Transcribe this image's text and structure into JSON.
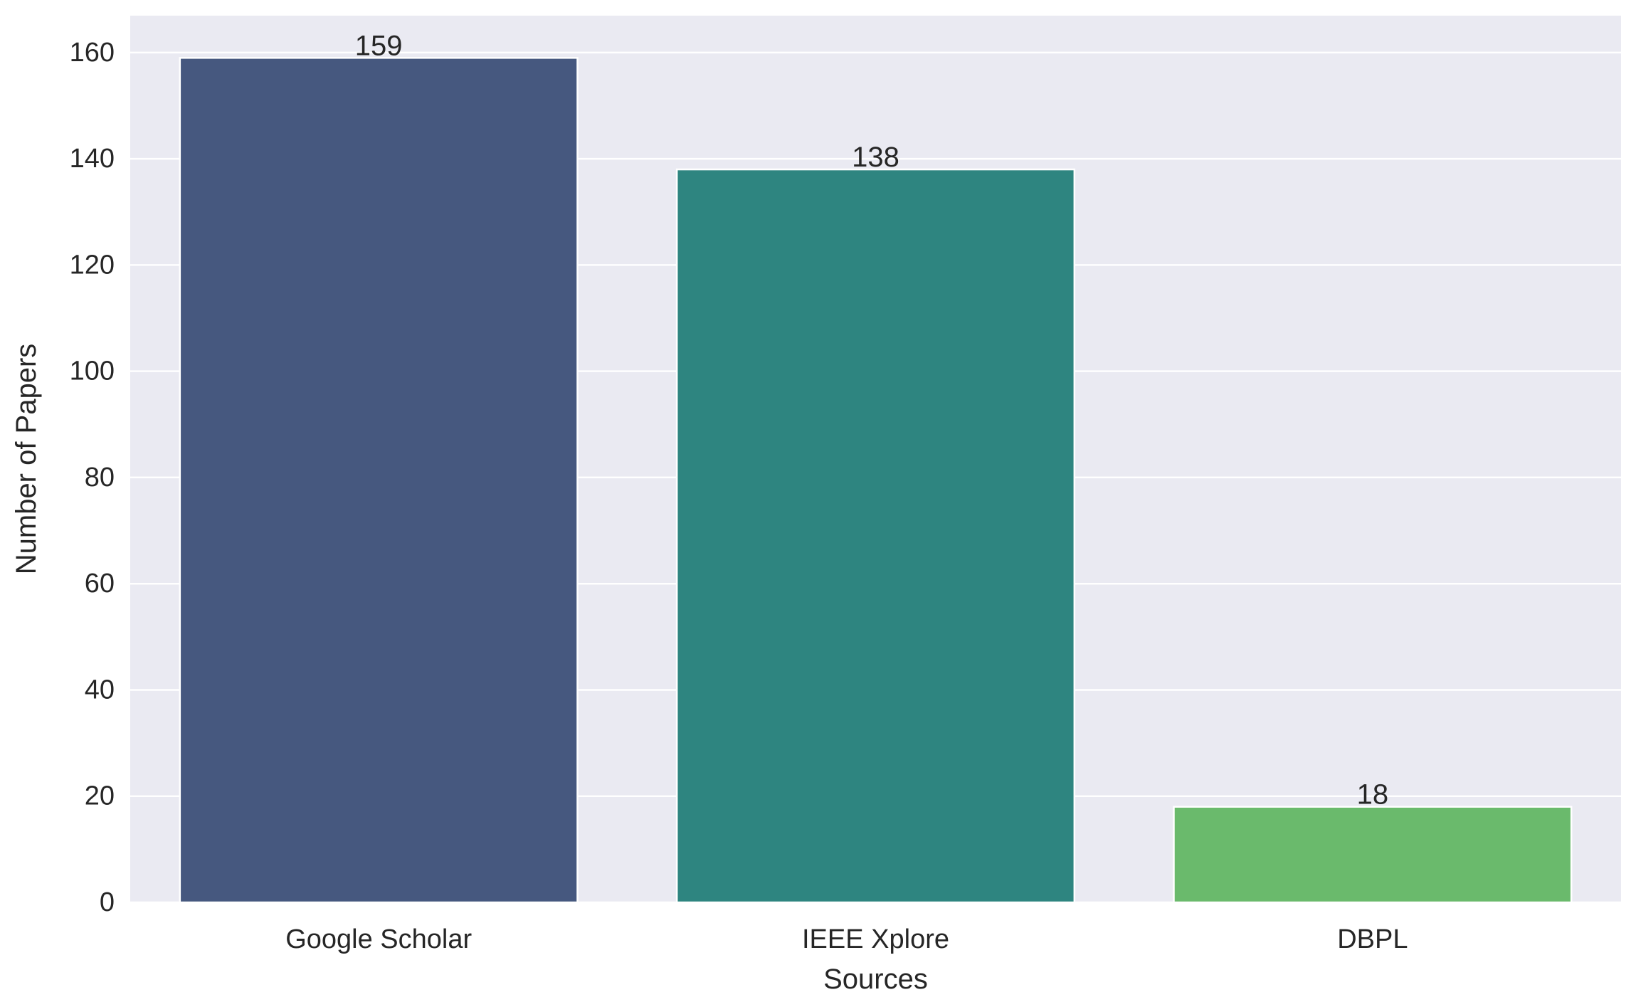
{
  "chart_data": {
    "type": "bar",
    "categories": [
      "Google Scholar",
      "IEEE Xplore",
      "DBPL"
    ],
    "values": [
      159,
      138,
      18
    ],
    "data_labels": [
      "159",
      "138",
      "18"
    ],
    "bar_colors": [
      "#46587f",
      "#2e8580",
      "#6aba6c"
    ],
    "title": "",
    "xlabel": "Sources",
    "ylabel": "Number of Papers",
    "ylim": [
      0,
      166.95
    ],
    "yticks": [
      0,
      20,
      40,
      60,
      80,
      100,
      120,
      140,
      160
    ],
    "ytick_labels": [
      "0",
      "20",
      "40",
      "60",
      "80",
      "100",
      "120",
      "140",
      "160"
    ],
    "grid": true,
    "legend": "none",
    "background_color": "#eaeaf2",
    "grid_color": "#ffffff"
  }
}
